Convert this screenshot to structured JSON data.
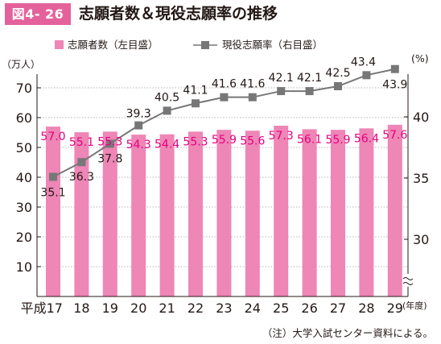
{
  "figure_label": "図4- 26",
  "title": "志願者数＆現役志願率の推移",
  "note": "（注）大学入試センター資料による。",
  "colors": {
    "bar": "#ee86b6",
    "line": "#777777",
    "bar_label": "#e4007f",
    "label_bg": "#e4629c"
  },
  "chart_data": {
    "type": "bar",
    "categories": [
      "平成17",
      "18",
      "19",
      "20",
      "21",
      "22",
      "23",
      "24",
      "25",
      "26",
      "27",
      "28",
      "29"
    ],
    "x_unit": "(年度)",
    "left_axis": {
      "unit": "（万人）",
      "ticks": [
        10,
        20,
        30,
        40,
        50,
        60,
        70
      ],
      "range": [
        0,
        75
      ]
    },
    "right_axis": {
      "unit": "(%)",
      "ticks": [
        30,
        35,
        40
      ],
      "range": [
        25.5,
        43.9
      ],
      "break": true
    },
    "series": [
      {
        "name": "志願者数（左目盛）",
        "type": "bar",
        "axis": "left",
        "values": [
          57.0,
          55.1,
          55.3,
          54.3,
          54.4,
          55.3,
          55.9,
          55.6,
          57.3,
          56.1,
          55.9,
          56.4,
          57.6
        ],
        "labels": [
          "57.0",
          "55.1",
          "55.3",
          "54.3",
          "54.4",
          "55.3",
          "55.9",
          "55.6",
          "57.3",
          "56.1",
          "55.9",
          "56.4",
          "57.6"
        ]
      },
      {
        "name": "現役志願率（右目盛）",
        "type": "line",
        "axis": "right",
        "values": [
          35.1,
          36.3,
          37.8,
          39.3,
          40.5,
          41.1,
          41.6,
          41.6,
          42.1,
          42.1,
          42.5,
          43.4,
          43.9
        ],
        "labels": [
          "35.1",
          "36.3",
          "37.8",
          "39.3",
          "40.5",
          "41.1",
          "41.6",
          "41.6",
          "42.1",
          "42.1",
          "42.5",
          "43.4",
          "43.9"
        ]
      }
    ]
  }
}
